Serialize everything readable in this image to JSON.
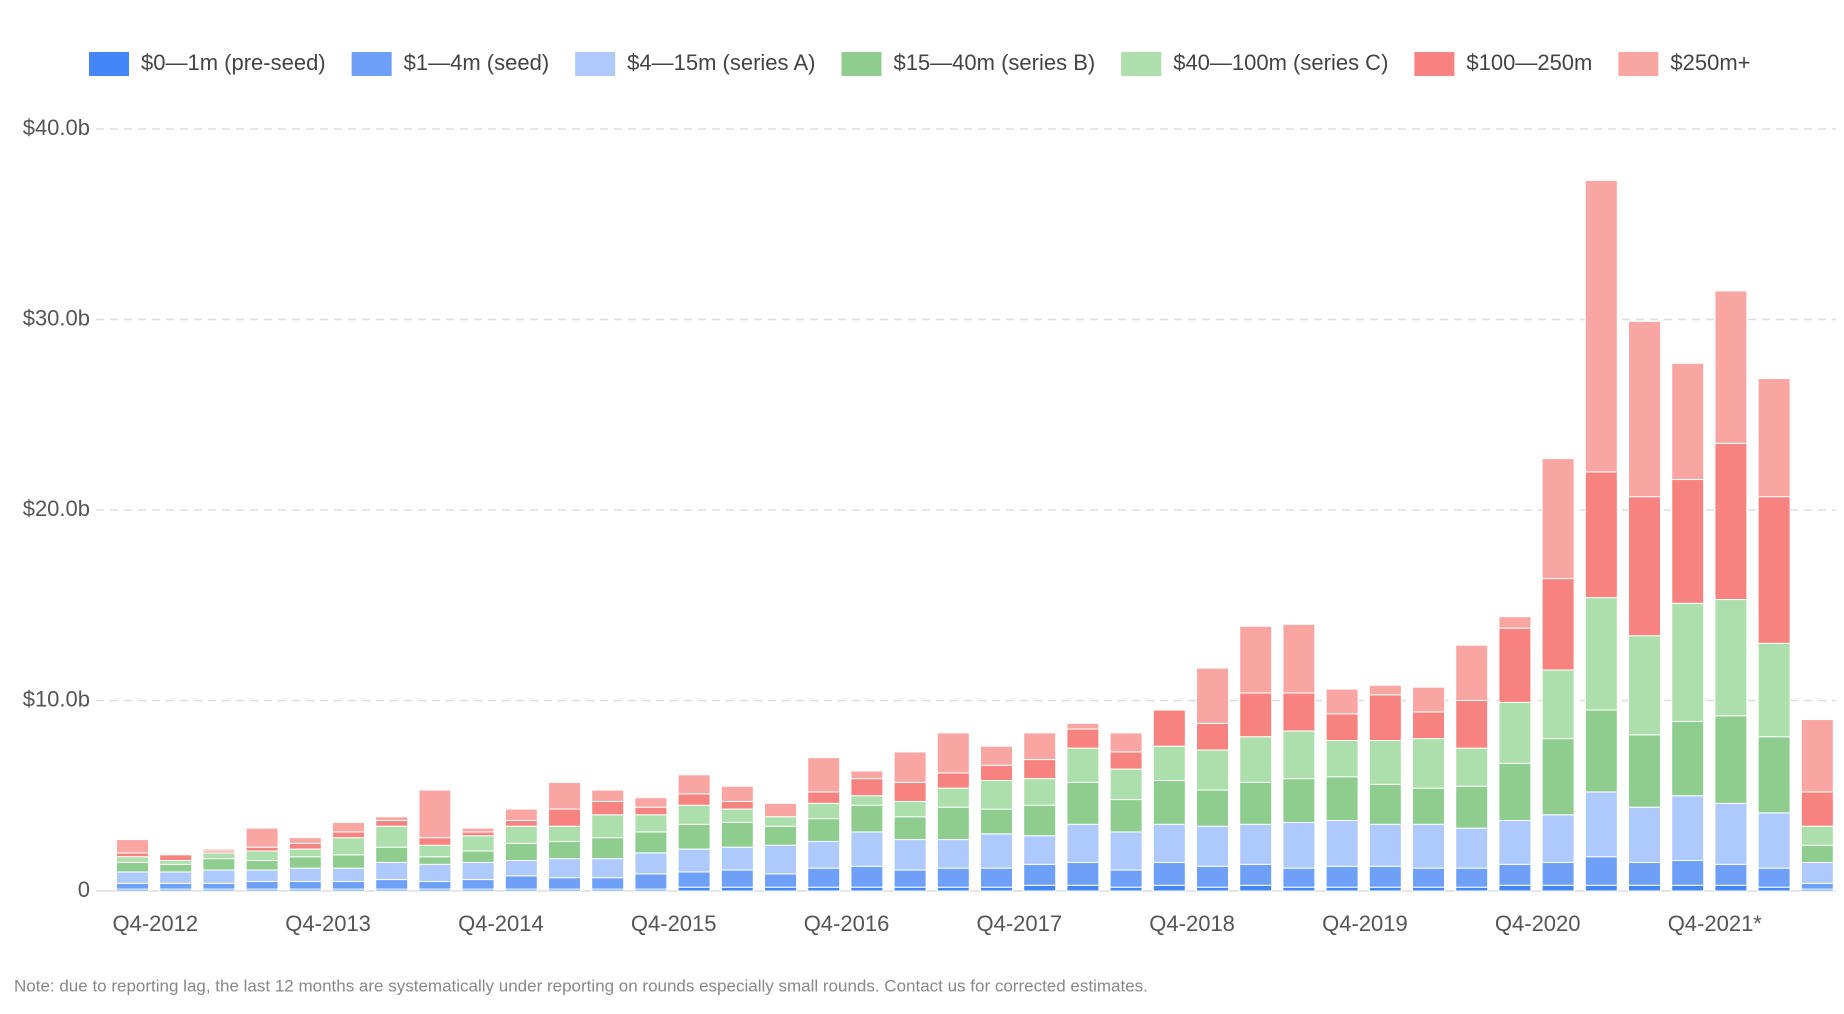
{
  "chart_data": {
    "type": "bar",
    "stacked": true,
    "note": "Note: due to reporting lag, the last 12 months are systematically under reporting on rounds especially small rounds. Contact us for corrected estimates.",
    "categories": [
      "Q4-2012",
      null,
      null,
      null,
      "Q4-2013",
      null,
      null,
      null,
      "Q4-2014",
      null,
      null,
      null,
      "Q4-2015",
      null,
      null,
      null,
      "Q4-2016",
      null,
      null,
      null,
      "Q4-2017",
      null,
      null,
      null,
      "Q4-2018",
      null,
      null,
      null,
      "Q4-2019",
      null,
      null,
      null,
      "Q4-2020",
      null,
      null,
      null,
      "Q4-2021*",
      null,
      null,
      null
    ],
    "series": [
      {
        "name": "$0—1m (pre-seed)",
        "color": "#4287f5",
        "values": [
          0.1,
          0.1,
          0.1,
          0.1,
          0.1,
          0.1,
          0.1,
          0.1,
          0.1,
          0.1,
          0.1,
          0.1,
          0.1,
          0.2,
          0.2,
          0.2,
          0.2,
          0.2,
          0.2,
          0.2,
          0.2,
          0.3,
          0.3,
          0.2,
          0.3,
          0.2,
          0.3,
          0.2,
          0.2,
          0.2,
          0.2,
          0.2,
          0.3,
          0.3,
          0.3,
          0.3,
          0.3,
          0.3,
          0.2,
          0.1
        ]
      },
      {
        "name": "$1—4m (seed)",
        "color": "#6ea0f7",
        "values": [
          0.3,
          0.3,
          0.3,
          0.4,
          0.4,
          0.4,
          0.5,
          0.4,
          0.5,
          0.7,
          0.6,
          0.6,
          0.8,
          0.8,
          0.9,
          0.7,
          1.0,
          1.1,
          0.9,
          1.0,
          1.0,
          1.1,
          1.2,
          0.9,
          1.2,
          1.1,
          1.1,
          1.0,
          1.1,
          1.1,
          1.0,
          1.0,
          1.1,
          1.2,
          1.5,
          1.2,
          1.3,
          1.1,
          1.0,
          0.3
        ]
      },
      {
        "name": "$4—15m (series A)",
        "color": "#aec9fb",
        "values": [
          0.6,
          0.6,
          0.7,
          0.6,
          0.7,
          0.7,
          0.9,
          0.9,
          0.9,
          0.8,
          1.0,
          1.0,
          1.1,
          1.2,
          1.2,
          1.5,
          1.4,
          1.8,
          1.6,
          1.5,
          1.8,
          1.5,
          2.0,
          2.0,
          2.0,
          2.1,
          2.1,
          2.4,
          2.4,
          2.2,
          2.3,
          2.1,
          2.3,
          2.5,
          3.4,
          2.9,
          3.4,
          3.2,
          2.9,
          1.1
        ]
      },
      {
        "name": "$15—40m (series B)",
        "color": "#8fcd8f",
        "values": [
          0.5,
          0.4,
          0.6,
          0.5,
          0.6,
          0.7,
          0.8,
          0.4,
          0.6,
          0.9,
          0.9,
          1.1,
          1.1,
          1.3,
          1.3,
          1.0,
          1.2,
          1.4,
          1.2,
          1.7,
          1.3,
          1.6,
          2.2,
          1.7,
          2.3,
          1.9,
          2.2,
          2.3,
          2.3,
          2.1,
          1.9,
          2.2,
          3.0,
          4.0,
          4.3,
          3.8,
          3.9,
          4.6,
          4.0,
          0.9
        ]
      },
      {
        "name": "$40—100m (series C)",
        "color": "#addfac",
        "values": [
          0.3,
          0.2,
          0.3,
          0.5,
          0.4,
          0.9,
          1.1,
          0.6,
          0.8,
          0.9,
          0.8,
          1.2,
          0.9,
          1.0,
          0.7,
          0.5,
          0.8,
          0.5,
          0.8,
          1.0,
          1.5,
          1.4,
          1.8,
          1.6,
          1.8,
          2.1,
          2.4,
          2.5,
          1.9,
          2.3,
          2.6,
          2.0,
          3.2,
          3.6,
          5.9,
          5.2,
          6.2,
          6.1,
          4.9,
          1.0
        ]
      },
      {
        "name": "$100—250m",
        "color": "#f6837f",
        "values": [
          0.2,
          0.3,
          0.1,
          0.2,
          0.3,
          0.3,
          0.3,
          0.4,
          0.2,
          0.3,
          0.9,
          0.7,
          0.4,
          0.6,
          0.4,
          0.0,
          0.6,
          0.9,
          1.0,
          0.8,
          0.8,
          1.0,
          1.0,
          0.9,
          1.9,
          1.4,
          2.3,
          2.0,
          1.4,
          2.4,
          1.4,
          2.5,
          3.9,
          4.8,
          6.6,
          7.3,
          6.5,
          8.2,
          7.7,
          1.8
        ]
      },
      {
        "name": "$250m+",
        "color": "#f9a6a3",
        "values": [
          0.7,
          0.0,
          0.1,
          1.0,
          0.3,
          0.5,
          0.2,
          2.5,
          0.2,
          0.6,
          1.4,
          0.6,
          0.5,
          1.0,
          0.8,
          0.7,
          1.8,
          0.4,
          1.6,
          2.1,
          1.0,
          1.4,
          0.3,
          1.0,
          0.0,
          2.9,
          3.5,
          3.6,
          1.3,
          0.5,
          1.3,
          2.9,
          0.6,
          6.3,
          15.3,
          9.2,
          6.1,
          8.0,
          6.2,
          3.8
        ]
      }
    ],
    "ylim": [
      0,
      40
    ],
    "yticks": [
      0,
      {
        "value": 10,
        "label": "$10.0b"
      },
      {
        "value": 20,
        "label": "$20.0b"
      },
      {
        "value": 30,
        "label": "$30.0b"
      },
      {
        "value": 40,
        "label": "$40.0b"
      }
    ],
    "grid": true,
    "legend": "top"
  }
}
